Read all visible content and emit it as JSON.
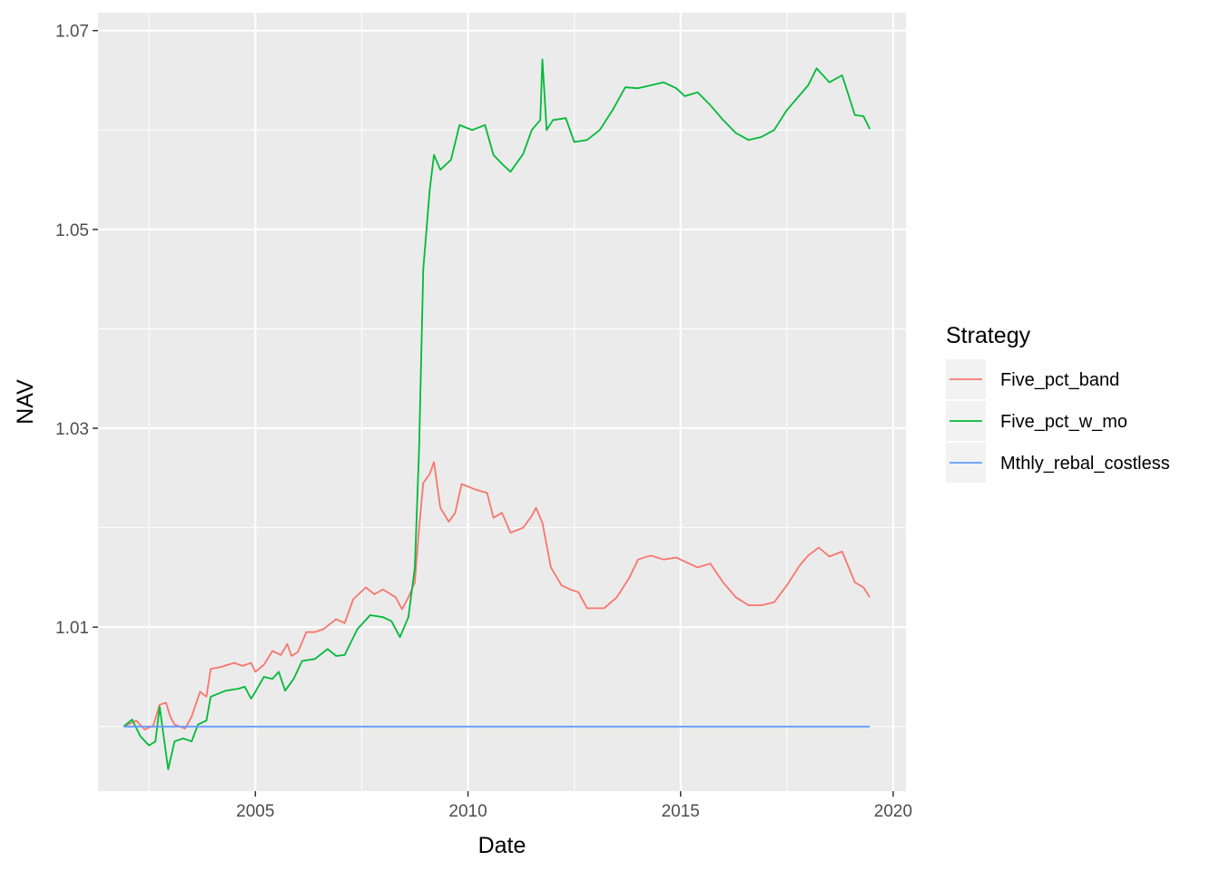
{
  "chart_data": {
    "type": "line",
    "xlabel": "Date",
    "ylabel": "NAV",
    "xlim": [
      2001.3,
      2020.3
    ],
    "ylim": [
      0.9935,
      1.0718
    ],
    "x_ticks": [
      2005,
      2010,
      2015,
      2020
    ],
    "x_tick_labels": [
      "2005",
      "2010",
      "2015",
      "2020"
    ],
    "y_ticks": [
      1.01,
      1.03,
      1.05,
      1.07
    ],
    "y_tick_labels": [
      "1.01",
      "1.03",
      "1.05",
      "1.07"
    ],
    "x_minor": [
      2002.5,
      2007.5,
      2012.5,
      2017.5
    ],
    "y_minor": [
      1.0,
      1.02,
      1.04,
      1.06
    ],
    "grid": true,
    "background": "#ebebeb",
    "legend": {
      "title": "Strategy",
      "placement": "right"
    },
    "series": [
      {
        "name": "Five_pct_band",
        "color": "#f8766d",
        "points": [
          [
            2001.9,
            1.0
          ],
          [
            2002.2,
            1.0006
          ],
          [
            2002.4,
            0.9997
          ],
          [
            2002.6,
            1.0001
          ],
          [
            2002.75,
            1.0022
          ],
          [
            2002.9,
            1.0024
          ],
          [
            2003.0,
            1.001
          ],
          [
            2003.1,
            1.0002
          ],
          [
            2003.35,
            0.9998
          ],
          [
            2003.5,
            1.001
          ],
          [
            2003.7,
            1.0035
          ],
          [
            2003.85,
            1.003
          ],
          [
            2003.95,
            1.0058
          ],
          [
            2004.2,
            1.006
          ],
          [
            2004.5,
            1.0064
          ],
          [
            2004.7,
            1.0061
          ],
          [
            2004.9,
            1.0064
          ],
          [
            2005.0,
            1.0055
          ],
          [
            2005.2,
            1.0062
          ],
          [
            2005.4,
            1.0076
          ],
          [
            2005.6,
            1.0072
          ],
          [
            2005.75,
            1.0083
          ],
          [
            2005.85,
            1.0071
          ],
          [
            2006.0,
            1.0075
          ],
          [
            2006.2,
            1.0095
          ],
          [
            2006.4,
            1.0095
          ],
          [
            2006.6,
            1.0098
          ],
          [
            2006.9,
            1.0108
          ],
          [
            2007.1,
            1.0104
          ],
          [
            2007.3,
            1.0128
          ],
          [
            2007.6,
            1.014
          ],
          [
            2007.8,
            1.0133
          ],
          [
            2008.0,
            1.0138
          ],
          [
            2008.3,
            1.013
          ],
          [
            2008.45,
            1.0118
          ],
          [
            2008.6,
            1.013
          ],
          [
            2008.75,
            1.0145
          ],
          [
            2008.85,
            1.02
          ],
          [
            2008.95,
            1.0245
          ],
          [
            2009.1,
            1.0254
          ],
          [
            2009.2,
            1.0266
          ],
          [
            2009.35,
            1.022
          ],
          [
            2009.55,
            1.0206
          ],
          [
            2009.7,
            1.0215
          ],
          [
            2009.85,
            1.0244
          ],
          [
            2010.2,
            1.0238
          ],
          [
            2010.45,
            1.0235
          ],
          [
            2010.6,
            1.021
          ],
          [
            2010.8,
            1.0215
          ],
          [
            2011.0,
            1.0195
          ],
          [
            2011.3,
            1.02
          ],
          [
            2011.5,
            1.0212
          ],
          [
            2011.6,
            1.022
          ],
          [
            2011.75,
            1.0205
          ],
          [
            2011.95,
            1.016
          ],
          [
            2012.2,
            1.0142
          ],
          [
            2012.4,
            1.0138
          ],
          [
            2012.6,
            1.0135
          ],
          [
            2012.8,
            1.0119
          ],
          [
            2013.2,
            1.0119
          ],
          [
            2013.5,
            1.013
          ],
          [
            2013.8,
            1.015
          ],
          [
            2014.0,
            1.0168
          ],
          [
            2014.3,
            1.0172
          ],
          [
            2014.6,
            1.0168
          ],
          [
            2014.9,
            1.017
          ],
          [
            2015.1,
            1.0166
          ],
          [
            2015.4,
            1.016
          ],
          [
            2015.7,
            1.0164
          ],
          [
            2016.0,
            1.0145
          ],
          [
            2016.3,
            1.013
          ],
          [
            2016.6,
            1.0122
          ],
          [
            2016.9,
            1.0122
          ],
          [
            2017.2,
            1.0125
          ],
          [
            2017.5,
            1.0142
          ],
          [
            2017.8,
            1.0162
          ],
          [
            2018.0,
            1.0172
          ],
          [
            2018.25,
            1.018
          ],
          [
            2018.5,
            1.0171
          ],
          [
            2018.8,
            1.0176
          ],
          [
            2019.1,
            1.0145
          ],
          [
            2019.3,
            1.014
          ],
          [
            2019.45,
            1.013
          ]
        ]
      },
      {
        "name": "Five_pct_w_mo",
        "color": "#00ba38",
        "points": [
          [
            2001.9,
            1.0
          ],
          [
            2002.1,
            1.0007
          ],
          [
            2002.3,
            0.999
          ],
          [
            2002.5,
            0.9981
          ],
          [
            2002.65,
            0.9985
          ],
          [
            2002.75,
            1.002
          ],
          [
            2002.85,
            0.9988
          ],
          [
            2002.95,
            0.9957
          ],
          [
            2003.1,
            0.9985
          ],
          [
            2003.3,
            0.9988
          ],
          [
            2003.5,
            0.9985
          ],
          [
            2003.65,
            1.0002
          ],
          [
            2003.85,
            1.0006
          ],
          [
            2003.95,
            1.003
          ],
          [
            2004.3,
            1.0036
          ],
          [
            2004.6,
            1.0038
          ],
          [
            2004.75,
            1.004
          ],
          [
            2004.9,
            1.0028
          ],
          [
            2005.0,
            1.0035
          ],
          [
            2005.2,
            1.005
          ],
          [
            2005.4,
            1.0048
          ],
          [
            2005.55,
            1.0055
          ],
          [
            2005.7,
            1.0036
          ],
          [
            2005.9,
            1.0048
          ],
          [
            2006.1,
            1.0066
          ],
          [
            2006.4,
            1.0068
          ],
          [
            2006.7,
            1.0078
          ],
          [
            2006.9,
            1.0071
          ],
          [
            2007.1,
            1.0072
          ],
          [
            2007.4,
            1.0098
          ],
          [
            2007.7,
            1.0112
          ],
          [
            2008.0,
            1.011
          ],
          [
            2008.2,
            1.0106
          ],
          [
            2008.4,
            1.009
          ],
          [
            2008.6,
            1.011
          ],
          [
            2008.75,
            1.016
          ],
          [
            2008.85,
            1.028
          ],
          [
            2008.95,
            1.046
          ],
          [
            2009.1,
            1.054
          ],
          [
            2009.2,
            1.0575
          ],
          [
            2009.35,
            1.056
          ],
          [
            2009.6,
            1.057
          ],
          [
            2009.8,
            1.0605
          ],
          [
            2010.1,
            1.06
          ],
          [
            2010.4,
            1.0605
          ],
          [
            2010.6,
            1.0575
          ],
          [
            2010.8,
            1.0566
          ],
          [
            2011.0,
            1.0558
          ],
          [
            2011.3,
            1.0576
          ],
          [
            2011.5,
            1.06
          ],
          [
            2011.7,
            1.061
          ],
          [
            2011.75,
            1.0671
          ],
          [
            2011.85,
            1.06
          ],
          [
            2012.0,
            1.061
          ],
          [
            2012.3,
            1.0612
          ],
          [
            2012.5,
            1.0588
          ],
          [
            2012.8,
            1.059
          ],
          [
            2013.1,
            1.06
          ],
          [
            2013.4,
            1.062
          ],
          [
            2013.7,
            1.0643
          ],
          [
            2014.0,
            1.0642
          ],
          [
            2014.3,
            1.0645
          ],
          [
            2014.6,
            1.0648
          ],
          [
            2014.9,
            1.0642
          ],
          [
            2015.1,
            1.0634
          ],
          [
            2015.4,
            1.0638
          ],
          [
            2015.7,
            1.0625
          ],
          [
            2016.0,
            1.061
          ],
          [
            2016.3,
            1.0597
          ],
          [
            2016.6,
            1.059
          ],
          [
            2016.9,
            1.0593
          ],
          [
            2017.2,
            1.06
          ],
          [
            2017.5,
            1.062
          ],
          [
            2017.8,
            1.0635
          ],
          [
            2018.0,
            1.0645
          ],
          [
            2018.2,
            1.0662
          ],
          [
            2018.5,
            1.0648
          ],
          [
            2018.8,
            1.0655
          ],
          [
            2019.1,
            1.0615
          ],
          [
            2019.3,
            1.0614
          ],
          [
            2019.45,
            1.0601
          ]
        ]
      },
      {
        "name": "Mthly_rebal_costless",
        "color": "#619cff",
        "points": [
          [
            2001.9,
            1.0
          ],
          [
            2019.45,
            1.0
          ]
        ]
      }
    ]
  }
}
